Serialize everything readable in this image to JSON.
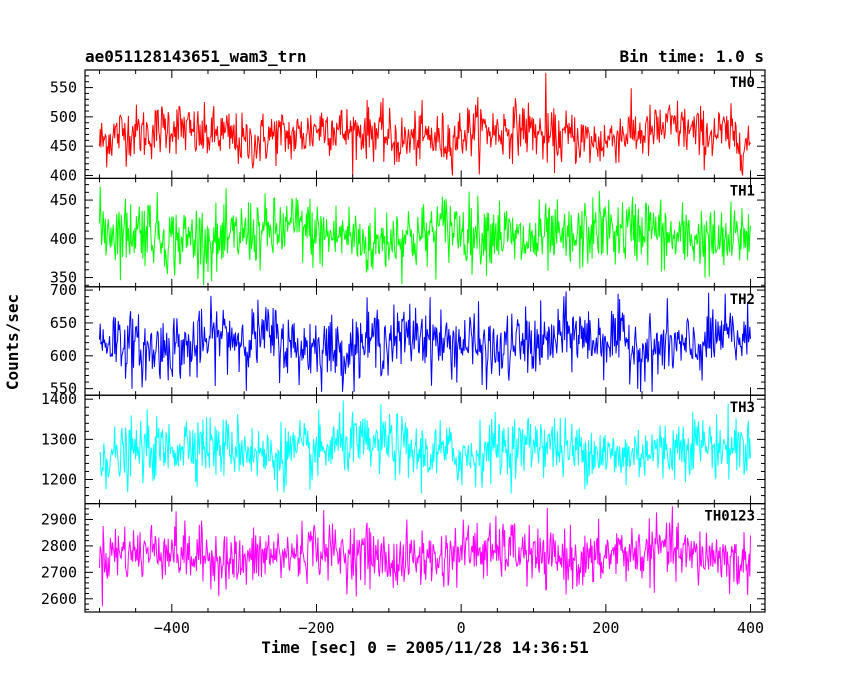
{
  "header": {
    "title": "ae051128143651_wam3_trn",
    "bin_time": "Bin time: 1.0 s"
  },
  "chart_data": {
    "type": "line",
    "title": "ae051128143651_wam3_trn",
    "subtitle": "Bin time: 1.0 s",
    "xlabel": "Time [sec] 0 = 2005/11/28 14:36:51",
    "ylabel": "Counts/sec",
    "xlim": [
      -520,
      420
    ],
    "x_ticks": [
      -400,
      -200,
      0,
      200,
      400
    ],
    "x_tick_labels": [
      "−400",
      "−200",
      "0",
      "200",
      "400"
    ],
    "x_range": [
      -500,
      400
    ],
    "bin_time_sec": 1.0,
    "grid": false,
    "panels": [
      {
        "name": "TH0",
        "color": "#ff0000",
        "ylim": [
          395,
          580
        ],
        "y_ticks": [
          400,
          450,
          500,
          550
        ],
        "mean": 470,
        "noise_sd": 23,
        "wave_amp": 10,
        "min_value": 400,
        "max_value": 575,
        "spike": {
          "x": 117,
          "value": 575
        }
      },
      {
        "name": "TH1",
        "color": "#00ff00",
        "ylim": [
          338,
          478
        ],
        "y_ticks": [
          350,
          400,
          450
        ],
        "mean": 405,
        "noise_sd": 22,
        "wave_amp": 8,
        "min_value": 340,
        "max_value": 475
      },
      {
        "name": "TH2",
        "color": "#0000ff",
        "ylim": [
          540,
          705
        ],
        "y_ticks": [
          550,
          600,
          650,
          700
        ],
        "mean": 620,
        "noise_sd": 25,
        "wave_amp": 10,
        "min_value": 545,
        "max_value": 700
      },
      {
        "name": "TH3",
        "color": "#00ffff",
        "ylim": [
          1140,
          1410
        ],
        "y_ticks": [
          1200,
          1300,
          1400
        ],
        "mean": 1275,
        "noise_sd": 38,
        "wave_amp": 14,
        "min_value": 1165,
        "max_value": 1400
      },
      {
        "name": "TH0123",
        "color": "#ff00ff",
        "ylim": [
          2550,
          2960
        ],
        "y_ticks": [
          2600,
          2700,
          2800,
          2900
        ],
        "mean": 2765,
        "noise_sd": 55,
        "wave_amp": 20,
        "min_value": 2560,
        "max_value": 2950
      }
    ]
  }
}
